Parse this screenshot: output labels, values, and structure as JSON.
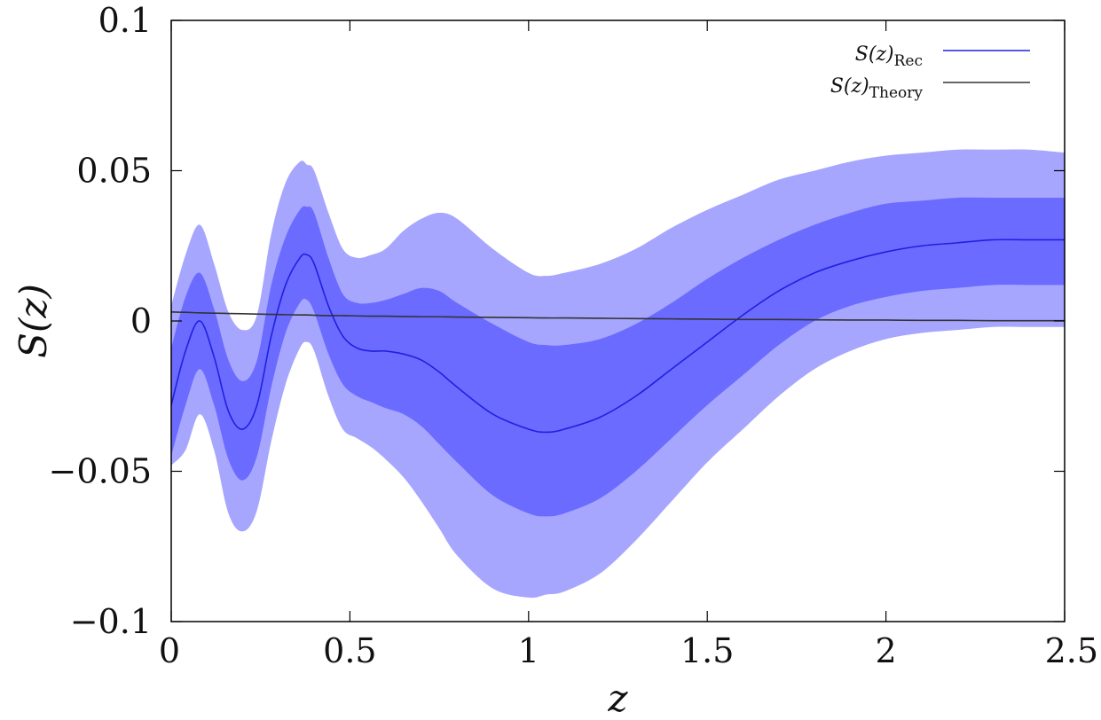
{
  "chart_data": {
    "type": "line",
    "xlabel": "z",
    "ylabel": "S(z)",
    "xlim": [
      0,
      2.5
    ],
    "ylim": [
      -0.1,
      0.1
    ],
    "x_ticks": [
      0,
      0.5,
      1,
      1.5,
      2,
      2.5
    ],
    "x_tick_labels": [
      "0",
      "0.5",
      "1",
      "1.5",
      "2",
      "2.5"
    ],
    "y_ticks": [
      -0.1,
      -0.05,
      0,
      0.05,
      0.1
    ],
    "y_tick_labels": [
      "−0.1",
      "−0.05",
      "0",
      "0.05",
      "0.1"
    ],
    "grid": false,
    "legend_position": "top-right",
    "colors": {
      "rec": "#2020e0",
      "theory": "#333333",
      "band_1sigma": "#6b6bff",
      "band_2sigma": "#a6a6ff"
    },
    "x": [
      0,
      0.04,
      0.08,
      0.12,
      0.16,
      0.2,
      0.24,
      0.28,
      0.32,
      0.36,
      0.38,
      0.4,
      0.44,
      0.48,
      0.52,
      0.56,
      0.6,
      0.65,
      0.7,
      0.75,
      0.8,
      0.9,
      1.0,
      1.05,
      1.1,
      1.2,
      1.3,
      1.4,
      1.5,
      1.6,
      1.7,
      1.8,
      1.9,
      2.0,
      2.1,
      2.2,
      2.3,
      2.4,
      2.5
    ],
    "series": [
      {
        "name": "S(z)_Rec",
        "label_main": "S(z)",
        "label_sub": "Rec",
        "values": [
          -0.028,
          -0.01,
          0.0,
          -0.012,
          -0.03,
          -0.036,
          -0.028,
          -0.005,
          0.012,
          0.021,
          0.022,
          0.019,
          0.005,
          -0.005,
          -0.009,
          -0.01,
          -0.01,
          -0.011,
          -0.013,
          -0.017,
          -0.022,
          -0.031,
          -0.036,
          -0.037,
          -0.036,
          -0.032,
          -0.025,
          -0.016,
          -0.007,
          0.002,
          0.01,
          0.016,
          0.02,
          0.023,
          0.025,
          0.026,
          0.027,
          0.027,
          0.027
        ],
        "upper_1sigma": [
          -0.009,
          0.008,
          0.016,
          0.004,
          -0.013,
          -0.02,
          -0.013,
          0.012,
          0.028,
          0.037,
          0.038,
          0.036,
          0.021,
          0.009,
          0.006,
          0.006,
          0.007,
          0.009,
          0.011,
          0.01,
          0.006,
          -0.001,
          -0.007,
          -0.008,
          -0.008,
          -0.006,
          -0.001,
          0.006,
          0.014,
          0.021,
          0.027,
          0.032,
          0.036,
          0.039,
          0.04,
          0.041,
          0.041,
          0.041,
          0.041
        ],
        "lower_1sigma": [
          -0.045,
          -0.028,
          -0.016,
          -0.028,
          -0.046,
          -0.053,
          -0.045,
          -0.022,
          -0.004,
          0.006,
          0.007,
          0.003,
          -0.011,
          -0.021,
          -0.025,
          -0.027,
          -0.029,
          -0.031,
          -0.035,
          -0.041,
          -0.047,
          -0.058,
          -0.064,
          -0.065,
          -0.064,
          -0.059,
          -0.05,
          -0.039,
          -0.028,
          -0.018,
          -0.008,
          0.0,
          0.005,
          0.008,
          0.01,
          0.011,
          0.012,
          0.012,
          0.012
        ],
        "upper_2sigma": [
          0.005,
          0.022,
          0.032,
          0.019,
          0.003,
          -0.003,
          0.002,
          0.029,
          0.046,
          0.053,
          0.052,
          0.05,
          0.036,
          0.024,
          0.021,
          0.022,
          0.024,
          0.03,
          0.034,
          0.036,
          0.034,
          0.024,
          0.016,
          0.015,
          0.016,
          0.019,
          0.024,
          0.031,
          0.037,
          0.042,
          0.047,
          0.05,
          0.053,
          0.055,
          0.056,
          0.057,
          0.057,
          0.057,
          0.056
        ],
        "lower_2sigma": [
          -0.048,
          -0.043,
          -0.031,
          -0.043,
          -0.064,
          -0.07,
          -0.063,
          -0.04,
          -0.021,
          -0.009,
          -0.007,
          -0.01,
          -0.025,
          -0.036,
          -0.039,
          -0.042,
          -0.046,
          -0.052,
          -0.06,
          -0.069,
          -0.078,
          -0.089,
          -0.092,
          -0.091,
          -0.09,
          -0.084,
          -0.073,
          -0.06,
          -0.047,
          -0.036,
          -0.025,
          -0.016,
          -0.01,
          -0.006,
          -0.004,
          -0.003,
          -0.002,
          -0.002,
          -0.002
        ]
      },
      {
        "name": "S(z)_Theory",
        "label_main": "S(z)",
        "label_sub": "Theory",
        "values": [
          0.003,
          0.0029,
          0.0027,
          0.0026,
          0.0025,
          0.0024,
          0.0023,
          0.0022,
          0.0021,
          0.002,
          0.002,
          0.0019,
          0.0018,
          0.0018,
          0.0017,
          0.0016,
          0.0016,
          0.0015,
          0.0014,
          0.0014,
          0.0013,
          0.0012,
          0.0011,
          0.001,
          0.001,
          0.0009,
          0.0008,
          0.0007,
          0.0006,
          0.0005,
          0.0005,
          0.0004,
          0.0003,
          0.0003,
          0.0002,
          0.0002,
          0.0001,
          0.0001,
          0.0001
        ]
      }
    ]
  }
}
